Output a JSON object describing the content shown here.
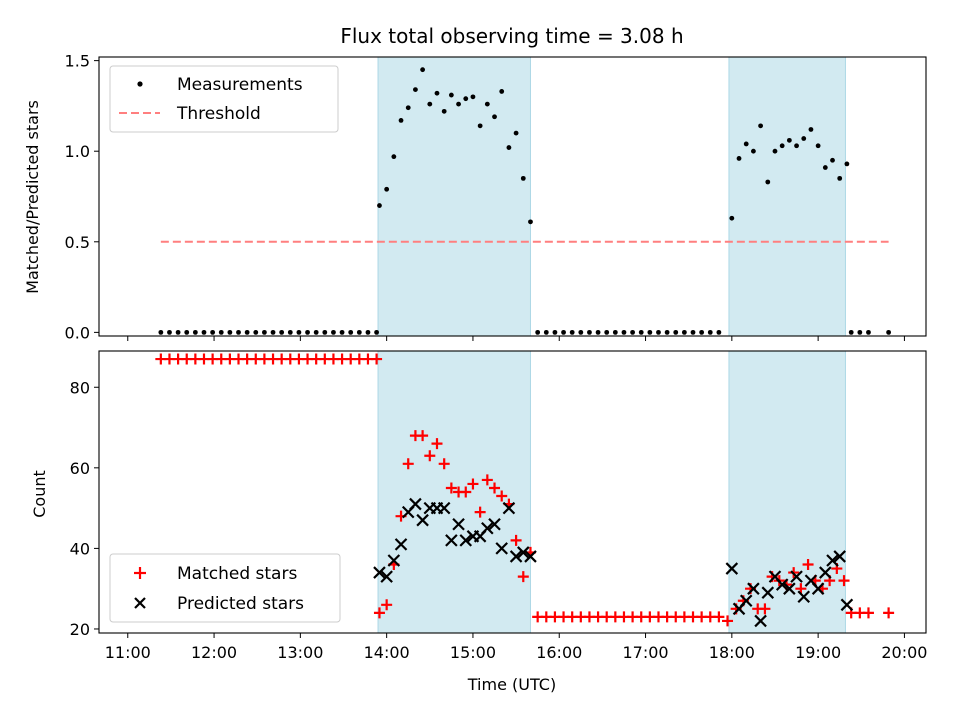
{
  "title": "Flux total observing time = 3.08 h",
  "colors": {
    "shade": "#add8e6",
    "measurement": "#000000",
    "threshold": "#ff7f7f",
    "matched": "#ff0000",
    "predicted": "#000000"
  },
  "chart_data": [
    {
      "type": "scatter",
      "panel": "top",
      "ylabel": "Matched/Predicted stars",
      "xlim": [
        "11:00",
        "20:00"
      ],
      "ylim": [
        0,
        1.5
      ],
      "yticks": [
        0.0,
        0.5,
        1.0,
        1.5
      ],
      "ytick_labels": [
        "0.0",
        "0.5",
        "1.0",
        "1.5"
      ],
      "legend_position": "top-left",
      "shaded_intervals": [
        [
          "13:54",
          "15:40"
        ],
        [
          "17:58",
          "19:19"
        ]
      ],
      "threshold": {
        "name": "Threshold",
        "value": 0.5,
        "x_start": "11:23",
        "x_end": "19:49"
      },
      "series": [
        {
          "name": "Measurements",
          "x": [
            "11:23",
            "11:29",
            "11:35",
            "11:41",
            "11:47",
            "11:53",
            "11:59",
            "12:05",
            "12:11",
            "12:17",
            "12:23",
            "12:29",
            "12:35",
            "12:41",
            "12:47",
            "12:53",
            "12:59",
            "13:05",
            "13:11",
            "13:17",
            "13:23",
            "13:29",
            "13:35",
            "13:41",
            "13:47",
            "13:53",
            "13:55",
            "14:00",
            "14:05",
            "14:10",
            "14:15",
            "14:20",
            "14:25",
            "14:30",
            "14:35",
            "14:40",
            "14:45",
            "14:50",
            "14:55",
            "15:00",
            "15:05",
            "15:10",
            "15:15",
            "15:20",
            "15:25",
            "15:30",
            "15:35",
            "15:40",
            "15:45",
            "15:51",
            "15:57",
            "16:03",
            "16:09",
            "16:15",
            "16:21",
            "16:27",
            "16:33",
            "16:39",
            "16:45",
            "16:51",
            "16:57",
            "17:03",
            "17:09",
            "17:15",
            "17:21",
            "17:27",
            "17:33",
            "17:39",
            "17:45",
            "17:51",
            "18:00",
            "18:05",
            "18:10",
            "18:15",
            "18:20",
            "18:25",
            "18:30",
            "18:35",
            "18:40",
            "18:45",
            "18:50",
            "18:55",
            "19:00",
            "19:05",
            "19:10",
            "19:15",
            "19:20",
            "19:23",
            "19:29",
            "19:35",
            "19:49"
          ],
          "y": [
            0,
            0,
            0,
            0,
            0,
            0,
            0,
            0,
            0,
            0,
            0,
            0,
            0,
            0,
            0,
            0,
            0,
            0,
            0,
            0,
            0,
            0,
            0,
            0,
            0,
            0,
            0.7,
            0.79,
            0.97,
            1.17,
            1.24,
            1.34,
            1.45,
            1.26,
            1.32,
            1.22,
            1.31,
            1.26,
            1.29,
            1.3,
            1.14,
            1.26,
            1.19,
            1.33,
            1.02,
            1.1,
            0.85,
            0.61,
            0,
            0,
            0,
            0,
            0,
            0,
            0,
            0,
            0,
            0,
            0,
            0,
            0,
            0,
            0,
            0,
            0,
            0,
            0,
            0,
            0,
            0,
            0.63,
            0.96,
            1.04,
            1.0,
            1.14,
            0.83,
            1.0,
            1.03,
            1.06,
            1.03,
            1.07,
            1.12,
            1.03,
            0.91,
            0.95,
            0.85,
            0.93,
            0,
            0,
            0,
            0
          ]
        }
      ]
    },
    {
      "type": "scatter",
      "panel": "bottom",
      "xlabel": "Time (UTC)",
      "ylabel": "Count",
      "xlim": [
        "11:00",
        "20:00"
      ],
      "ylim": [
        19,
        89
      ],
      "yticks": [
        20,
        40,
        60,
        80
      ],
      "ytick_labels": [
        "20",
        "40",
        "60",
        "80"
      ],
      "xtick_labels": [
        "11:00",
        "12:00",
        "13:00",
        "14:00",
        "15:00",
        "16:00",
        "17:00",
        "18:00",
        "19:00",
        "20:00"
      ],
      "legend_position": "bottom-left",
      "shaded_intervals": [
        [
          "13:54",
          "15:40"
        ],
        [
          "17:58",
          "19:19"
        ]
      ],
      "series": [
        {
          "name": "Matched stars",
          "x": [
            "11:23",
            "11:29",
            "11:35",
            "11:41",
            "11:47",
            "11:53",
            "11:59",
            "12:05",
            "12:11",
            "12:17",
            "12:23",
            "12:29",
            "12:35",
            "12:41",
            "12:47",
            "12:53",
            "12:59",
            "13:05",
            "13:11",
            "13:17",
            "13:23",
            "13:29",
            "13:35",
            "13:41",
            "13:47",
            "13:53",
            "13:55",
            "14:00",
            "14:05",
            "14:10",
            "14:15",
            "14:20",
            "14:25",
            "14:30",
            "14:35",
            "14:40",
            "14:45",
            "14:50",
            "14:55",
            "15:00",
            "15:05",
            "15:10",
            "15:15",
            "15:20",
            "15:25",
            "15:30",
            "15:35",
            "15:40",
            "15:45",
            "15:51",
            "15:57",
            "16:03",
            "16:09",
            "16:15",
            "16:21",
            "16:27",
            "16:33",
            "16:39",
            "16:45",
            "16:51",
            "16:57",
            "17:03",
            "17:09",
            "17:15",
            "17:21",
            "17:27",
            "17:33",
            "17:39",
            "17:45",
            "17:51",
            "17:57",
            "18:03",
            "18:08",
            "18:13",
            "18:18",
            "18:23",
            "18:28",
            "18:33",
            "18:38",
            "18:43",
            "18:48",
            "18:53",
            "18:58",
            "19:03",
            "19:08",
            "19:13",
            "19:18",
            "19:23",
            "19:29",
            "19:35",
            "19:49"
          ],
          "y": [
            87,
            87,
            87,
            87,
            87,
            87,
            87,
            87,
            87,
            87,
            87,
            87,
            87,
            87,
            87,
            87,
            87,
            87,
            87,
            87,
            87,
            87,
            87,
            87,
            87,
            87,
            24,
            26,
            36,
            48,
            61,
            68,
            68,
            63,
            66,
            61,
            55,
            54,
            54,
            56,
            49,
            57,
            55,
            53,
            51,
            42,
            33,
            39,
            23,
            23,
            23,
            23,
            23,
            23,
            23,
            23,
            23,
            23,
            23,
            23,
            23,
            23,
            23,
            23,
            23,
            23,
            23,
            23,
            23,
            23,
            22,
            25,
            27,
            30,
            25,
            25,
            33,
            32,
            31,
            34,
            30,
            36,
            32,
            30,
            32,
            35,
            32,
            24,
            24,
            24,
            24
          ]
        },
        {
          "name": "Predicted stars",
          "x": [
            "13:55",
            "14:00",
            "14:05",
            "14:10",
            "14:15",
            "14:20",
            "14:25",
            "14:30",
            "14:35",
            "14:40",
            "14:45",
            "14:50",
            "14:55",
            "15:00",
            "15:05",
            "15:10",
            "15:15",
            "15:20",
            "15:25",
            "15:30",
            "15:35",
            "15:40",
            "18:00",
            "18:05",
            "18:10",
            "18:15",
            "18:20",
            "18:25",
            "18:30",
            "18:35",
            "18:40",
            "18:45",
            "18:50",
            "18:55",
            "19:00",
            "19:05",
            "19:10",
            "19:15",
            "19:20"
          ],
          "y": [
            34,
            33,
            37,
            41,
            49,
            51,
            47,
            50,
            50,
            50,
            42,
            46,
            42,
            43,
            43,
            45,
            46,
            40,
            50,
            38,
            39,
            38,
            35,
            25,
            27,
            30,
            22,
            29,
            33,
            31,
            30,
            33,
            28,
            32,
            30,
            34,
            37,
            38,
            26
          ]
        }
      ]
    }
  ]
}
